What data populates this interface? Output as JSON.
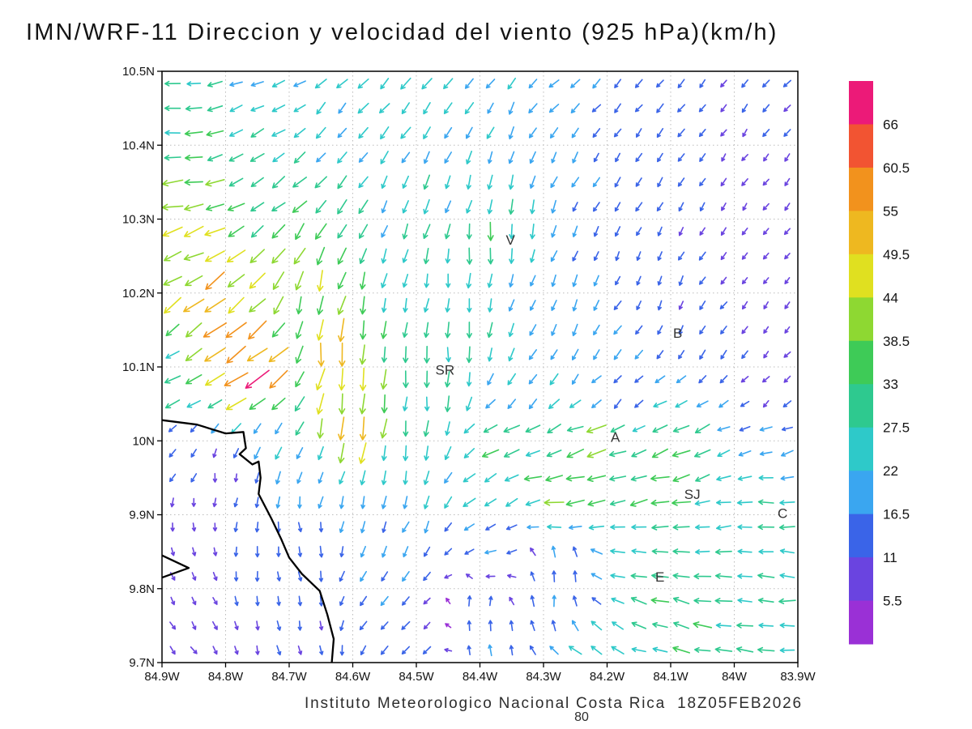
{
  "title": "IMN/WRF-11 Direccion y velocidad del viento (925 hPa)(km/h)",
  "footer": {
    "credit": "Instituto Meteorologico Nacional Costa Rica  18Z05FEB2026",
    "page_number": "80"
  },
  "chart_data": {
    "type": "vector_field",
    "title": "IMN/WRF-11 Direccion y velocidad del viento (925 hPa)(km/h)",
    "variable": "Direccion y velocidad del viento",
    "level": "925 hPa",
    "units": "km/h",
    "model": "IMN/WRF-11",
    "valid_time": "18Z05FEB2026",
    "lon_range": [
      84.9,
      83.9
    ],
    "lat_range": [
      9.7,
      10.5
    ],
    "grid": true,
    "x_ticks": [
      {
        "label": "84.9W",
        "lon": 84.9
      },
      {
        "label": "84.8W",
        "lon": 84.8
      },
      {
        "label": "84.7W",
        "lon": 84.7
      },
      {
        "label": "84.6W",
        "lon": 84.6
      },
      {
        "label": "84.5W",
        "lon": 84.5
      },
      {
        "label": "84.4W",
        "lon": 84.4
      },
      {
        "label": "84.3W",
        "lon": 84.3
      },
      {
        "label": "84.2W",
        "lon": 84.2
      },
      {
        "label": "84.1W",
        "lon": 84.1
      },
      {
        "label": "84W",
        "lon": 84.0
      },
      {
        "label": "83.9W",
        "lon": 83.9
      }
    ],
    "y_ticks": [
      {
        "label": "10.5N",
        "lat": 10.5
      },
      {
        "label": "10.4N",
        "lat": 10.4
      },
      {
        "label": "10.3N",
        "lat": 10.3
      },
      {
        "label": "10.2N",
        "lat": 10.2
      },
      {
        "label": "10.1N",
        "lat": 10.1
      },
      {
        "label": "10N",
        "lat": 10.0
      },
      {
        "label": "9.9N",
        "lat": 9.9
      },
      {
        "label": "9.8N",
        "lat": 9.8
      },
      {
        "label": "9.7N",
        "lat": 9.7
      }
    ],
    "colorbar": {
      "units": "km/h",
      "levels": [
        5.5,
        11,
        16.5,
        22,
        27.5,
        33,
        38.5,
        44,
        49.5,
        55,
        60.5,
        66
      ],
      "labels": [
        "5.5",
        "11",
        "16.5",
        "22",
        "27.5",
        "33",
        "38.5",
        "44",
        "49.5",
        "55",
        "60.5",
        "66"
      ],
      "colors": [
        "#9a30d6",
        "#6a44e0",
        "#3a64e8",
        "#3aa6f0",
        "#2ec9c9",
        "#2ec98f",
        "#3ecb57",
        "#8ed832",
        "#e0e020",
        "#eeb820",
        "#f2921d",
        "#f25432",
        "#ec1a78"
      ]
    },
    "stations": [
      {
        "label": "V",
        "lon": 84.352,
        "lat": 10.272
      },
      {
        "label": "B",
        "lon": 84.089,
        "lat": 10.146
      },
      {
        "label": "SR",
        "lon": 84.455,
        "lat": 10.096
      },
      {
        "label": "A",
        "lon": 84.187,
        "lat": 10.005
      },
      {
        "label": "SJ",
        "lon": 84.066,
        "lat": 9.928
      },
      {
        "label": "C",
        "lon": 83.924,
        "lat": 9.902
      },
      {
        "label": "E",
        "lon": 84.117,
        "lat": 9.816
      }
    ],
    "coastline": {
      "segments": [
        [
          [
            84.9,
            10.028
          ],
          [
            84.845,
            10.022
          ],
          [
            84.8,
            10.01
          ],
          [
            84.772,
            10.012
          ],
          [
            84.768,
            9.99
          ],
          [
            84.778,
            9.982
          ],
          [
            84.758,
            9.968
          ],
          [
            84.748,
            9.972
          ],
          [
            84.745,
            9.95
          ],
          [
            84.748,
            9.928
          ],
          [
            84.728,
            9.895
          ],
          [
            84.713,
            9.868
          ],
          [
            84.7,
            9.842
          ],
          [
            84.68,
            9.82
          ],
          [
            84.652,
            9.797
          ],
          [
            84.64,
            9.765
          ],
          [
            84.63,
            9.732
          ],
          [
            84.633,
            9.7
          ]
        ],
        [
          [
            84.9,
            9.845
          ],
          [
            84.858,
            9.828
          ],
          [
            84.9,
            9.815
          ]
        ]
      ]
    },
    "wind_field_sample": {
      "columns": [
        "lon_w",
        "lat_n",
        "direction_toward_deg",
        "speed_kmh"
      ],
      "points": [
        [
          84.88,
          10.47,
          270,
          26
        ],
        [
          84.72,
          10.47,
          250,
          23
        ],
        [
          84.57,
          10.47,
          225,
          24
        ],
        [
          84.42,
          10.47,
          222,
          22
        ],
        [
          84.27,
          10.47,
          228,
          18
        ],
        [
          84.12,
          10.47,
          225,
          14
        ],
        [
          83.95,
          10.47,
          220,
          11
        ],
        [
          84.88,
          10.41,
          265,
          32
        ],
        [
          84.62,
          10.41,
          215,
          22
        ],
        [
          84.36,
          10.41,
          205,
          20
        ],
        [
          84.18,
          10.41,
          215,
          13
        ],
        [
          84.02,
          10.41,
          215,
          10
        ],
        [
          84.87,
          10.33,
          262,
          42
        ],
        [
          84.7,
          10.33,
          235,
          32
        ],
        [
          84.52,
          10.31,
          205,
          24
        ],
        [
          84.38,
          10.33,
          195,
          26
        ],
        [
          84.2,
          10.31,
          210,
          14
        ],
        [
          83.95,
          10.3,
          215,
          8
        ],
        [
          84.84,
          10.26,
          245,
          46
        ],
        [
          84.66,
          10.26,
          210,
          34
        ],
        [
          84.5,
          10.26,
          195,
          26
        ],
        [
          84.38,
          10.27,
          180,
          33
        ],
        [
          84.15,
          10.26,
          205,
          11
        ],
        [
          83.93,
          10.24,
          215,
          7
        ],
        [
          84.81,
          10.2,
          230,
          52
        ],
        [
          84.66,
          10.2,
          195,
          40
        ],
        [
          84.54,
          10.2,
          190,
          27
        ],
        [
          84.44,
          10.2,
          185,
          24
        ],
        [
          84.3,
          10.2,
          200,
          18
        ],
        [
          84.1,
          10.18,
          200,
          12
        ],
        [
          83.93,
          10.16,
          210,
          7
        ],
        [
          84.79,
          10.13,
          232,
          60
        ],
        [
          84.63,
          10.13,
          185,
          46
        ],
        [
          84.5,
          10.13,
          185,
          30
        ],
        [
          84.42,
          10.12,
          180,
          27
        ],
        [
          84.28,
          10.12,
          205,
          20
        ],
        [
          84.06,
          10.12,
          215,
          13
        ],
        [
          84.88,
          10.08,
          252,
          30
        ],
        [
          84.76,
          10.09,
          237,
          64
        ],
        [
          84.6,
          10.07,
          188,
          50
        ],
        [
          84.48,
          10.06,
          182,
          28
        ],
        [
          84.33,
          10.06,
          215,
          20
        ],
        [
          84.18,
          10.06,
          220,
          15
        ],
        [
          83.95,
          10.05,
          225,
          9
        ],
        [
          84.86,
          10.0,
          215,
          12
        ],
        [
          84.73,
          10.0,
          205,
          20
        ],
        [
          84.6,
          10.01,
          190,
          48
        ],
        [
          84.5,
          10.0,
          185,
          28
        ],
        [
          84.36,
          10.0,
          252,
          36
        ],
        [
          84.22,
          10.0,
          253,
          40
        ],
        [
          84.08,
          10.0,
          247,
          34
        ],
        [
          83.94,
          10.0,
          252,
          20
        ],
        [
          84.8,
          9.95,
          185,
          9
        ],
        [
          84.65,
          9.95,
          195,
          18
        ],
        [
          84.52,
          9.94,
          188,
          24
        ],
        [
          84.4,
          9.94,
          230,
          26
        ],
        [
          84.27,
          9.93,
          262,
          42
        ],
        [
          84.12,
          9.93,
          258,
          36
        ],
        [
          83.94,
          9.92,
          268,
          26
        ],
        [
          84.85,
          9.87,
          165,
          8
        ],
        [
          84.68,
          9.87,
          172,
          14
        ],
        [
          84.52,
          9.86,
          205,
          18
        ],
        [
          84.38,
          9.85,
          250,
          18
        ],
        [
          84.28,
          9.83,
          0,
          16
        ],
        [
          84.13,
          9.84,
          278,
          30
        ],
        [
          83.95,
          9.84,
          272,
          28
        ],
        [
          84.86,
          9.79,
          150,
          9
        ],
        [
          84.7,
          9.79,
          168,
          12
        ],
        [
          84.55,
          9.78,
          215,
          16
        ],
        [
          84.4,
          9.78,
          10,
          14
        ],
        [
          84.28,
          9.78,
          355,
          17
        ],
        [
          84.13,
          9.79,
          285,
          32
        ],
        [
          83.96,
          9.78,
          275,
          30
        ],
        [
          84.85,
          9.72,
          145,
          10
        ],
        [
          84.68,
          9.72,
          165,
          12
        ],
        [
          84.52,
          9.72,
          220,
          15
        ],
        [
          84.38,
          9.72,
          350,
          15
        ],
        [
          84.22,
          9.72,
          305,
          26
        ],
        [
          84.06,
          9.72,
          282,
          34
        ],
        [
          83.92,
          9.72,
          276,
          28
        ]
      ]
    },
    "arrow_grid": {
      "cols": 30,
      "rows": 24
    }
  }
}
